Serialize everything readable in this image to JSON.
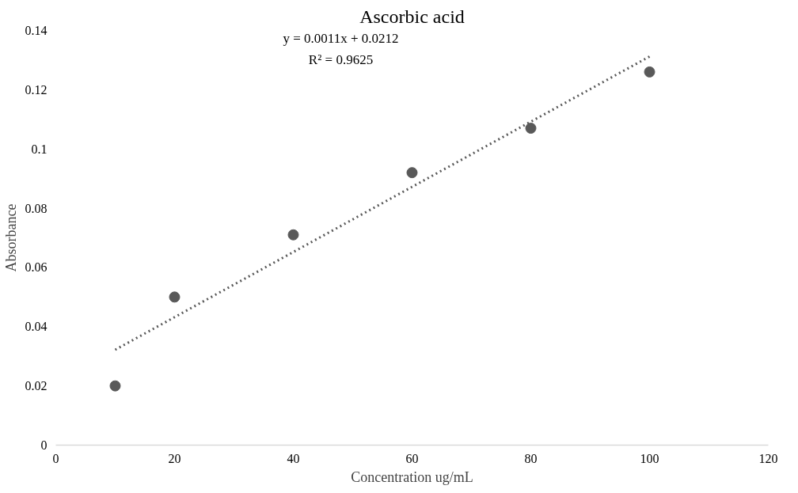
{
  "chart_data": {
    "type": "scatter",
    "title": "Ascorbic acid",
    "xlabel": "Concentration ug/mL",
    "ylabel": "Absorbance",
    "xlim": [
      0,
      120
    ],
    "xticks": [
      0,
      20,
      40,
      60,
      80,
      100,
      120
    ],
    "ylim": [
      0,
      0.14
    ],
    "yticks": [
      0,
      0.02,
      0.04,
      0.06,
      0.08,
      0.1,
      0.12,
      0.14
    ],
    "grid": false,
    "annotations": [
      "y = 0.0011x + 0.0212",
      "R² = 0.9625"
    ],
    "series": [
      {
        "color": "#595959",
        "marker": "circle",
        "x": [
          10,
          20,
          40,
          60,
          80,
          100
        ],
        "values": [
          0.02,
          0.05,
          0.071,
          0.092,
          0.107,
          0.126
        ]
      },
      {
        "type": "line",
        "color": "#595959",
        "line_style": "dotted",
        "marker": "none",
        "x": [
          10,
          100
        ],
        "values": [
          0.0322,
          0.1312
        ]
      }
    ]
  }
}
